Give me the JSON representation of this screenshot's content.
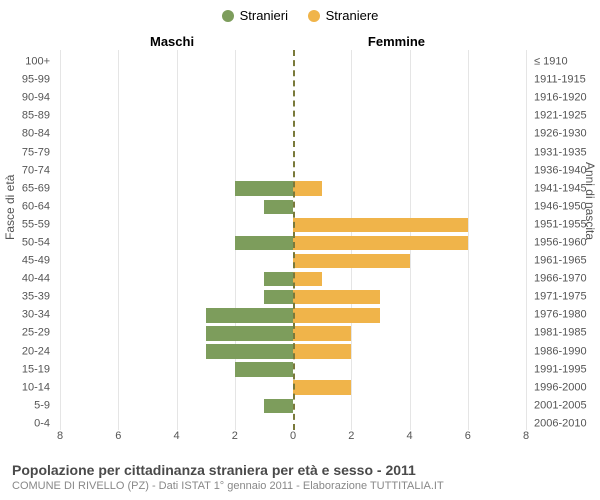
{
  "legend": {
    "male": {
      "label": "Stranieri",
      "color": "#7d9d5c"
    },
    "female": {
      "label": "Straniere",
      "color": "#f0b44a"
    }
  },
  "column_headers": {
    "left": "Maschi",
    "right": "Femmine"
  },
  "axis_titles": {
    "left": "Fasce di età",
    "right": "Anni di nascita"
  },
  "chart": {
    "type": "population-pyramid",
    "max_value": 8,
    "x_ticks_left": [
      8,
      6,
      4,
      2
    ],
    "x_ticks_center": [
      0
    ],
    "x_ticks_right": [
      2,
      4,
      6,
      8
    ],
    "grid_color": "#e5e5e5",
    "center_line_color": "#7a7a3b",
    "background_color": "#ffffff",
    "label_fontsize": 11,
    "rows": [
      {
        "age": "100+",
        "birth": "≤ 1910",
        "m": 0,
        "f": 0
      },
      {
        "age": "95-99",
        "birth": "1911-1915",
        "m": 0,
        "f": 0
      },
      {
        "age": "90-94",
        "birth": "1916-1920",
        "m": 0,
        "f": 0
      },
      {
        "age": "85-89",
        "birth": "1921-1925",
        "m": 0,
        "f": 0
      },
      {
        "age": "80-84",
        "birth": "1926-1930",
        "m": 0,
        "f": 0
      },
      {
        "age": "75-79",
        "birth": "1931-1935",
        "m": 0,
        "f": 0
      },
      {
        "age": "70-74",
        "birth": "1936-1940",
        "m": 0,
        "f": 0
      },
      {
        "age": "65-69",
        "birth": "1941-1945",
        "m": 2,
        "f": 1
      },
      {
        "age": "60-64",
        "birth": "1946-1950",
        "m": 1,
        "f": 0
      },
      {
        "age": "55-59",
        "birth": "1951-1955",
        "m": 0,
        "f": 6
      },
      {
        "age": "50-54",
        "birth": "1956-1960",
        "m": 2,
        "f": 6
      },
      {
        "age": "45-49",
        "birth": "1961-1965",
        "m": 0,
        "f": 4
      },
      {
        "age": "40-44",
        "birth": "1966-1970",
        "m": 1,
        "f": 1
      },
      {
        "age": "35-39",
        "birth": "1971-1975",
        "m": 1,
        "f": 3
      },
      {
        "age": "30-34",
        "birth": "1976-1980",
        "m": 3,
        "f": 3
      },
      {
        "age": "25-29",
        "birth": "1981-1985",
        "m": 3,
        "f": 2
      },
      {
        "age": "20-24",
        "birth": "1986-1990",
        "m": 3,
        "f": 2
      },
      {
        "age": "15-19",
        "birth": "1991-1995",
        "m": 2,
        "f": 0
      },
      {
        "age": "10-14",
        "birth": "1996-2000",
        "m": 0,
        "f": 2
      },
      {
        "age": "5-9",
        "birth": "2001-2005",
        "m": 1,
        "f": 0
      },
      {
        "age": "0-4",
        "birth": "2006-2010",
        "m": 0,
        "f": 0
      }
    ]
  },
  "footer": {
    "title": "Popolazione per cittadinanza straniera per età e sesso - 2011",
    "subtitle": "COMUNE DI RIVELLO (PZ) - Dati ISTAT 1° gennaio 2011 - Elaborazione TUTTITALIA.IT"
  }
}
